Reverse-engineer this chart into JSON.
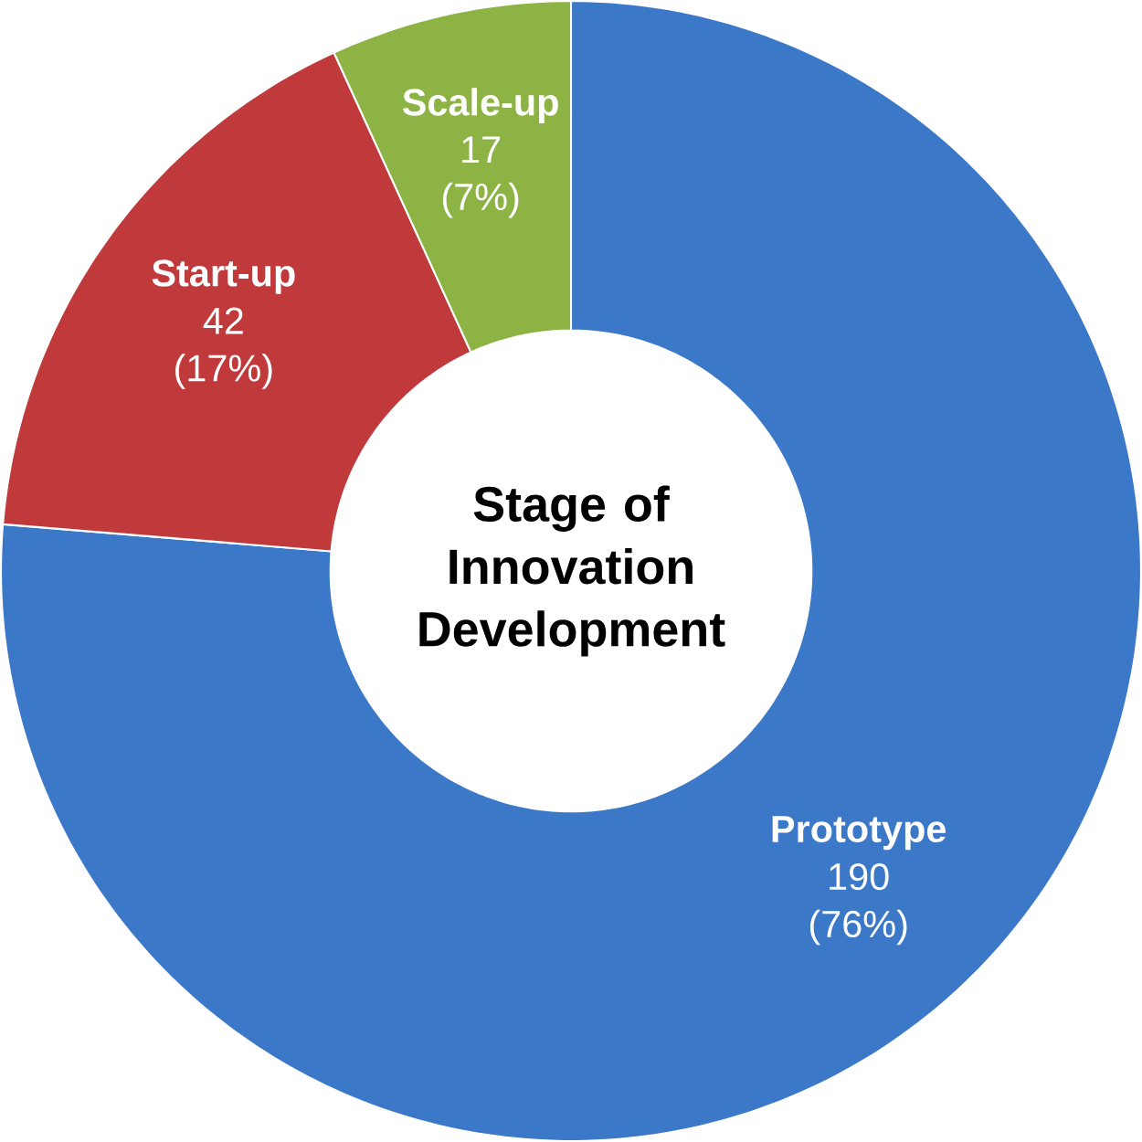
{
  "chart_data": {
    "type": "donut",
    "title": "Stage of Innovation Development",
    "categories": [
      "Prototype",
      "Start-up",
      "Scale-up"
    ],
    "values": [
      190,
      42,
      17
    ],
    "colors": [
      "#3c78c8",
      "#c0393b",
      "#8cb343"
    ],
    "value_labels": [
      "190 (76%)",
      "42 (17%)",
      "17 (7%)"
    ]
  }
}
